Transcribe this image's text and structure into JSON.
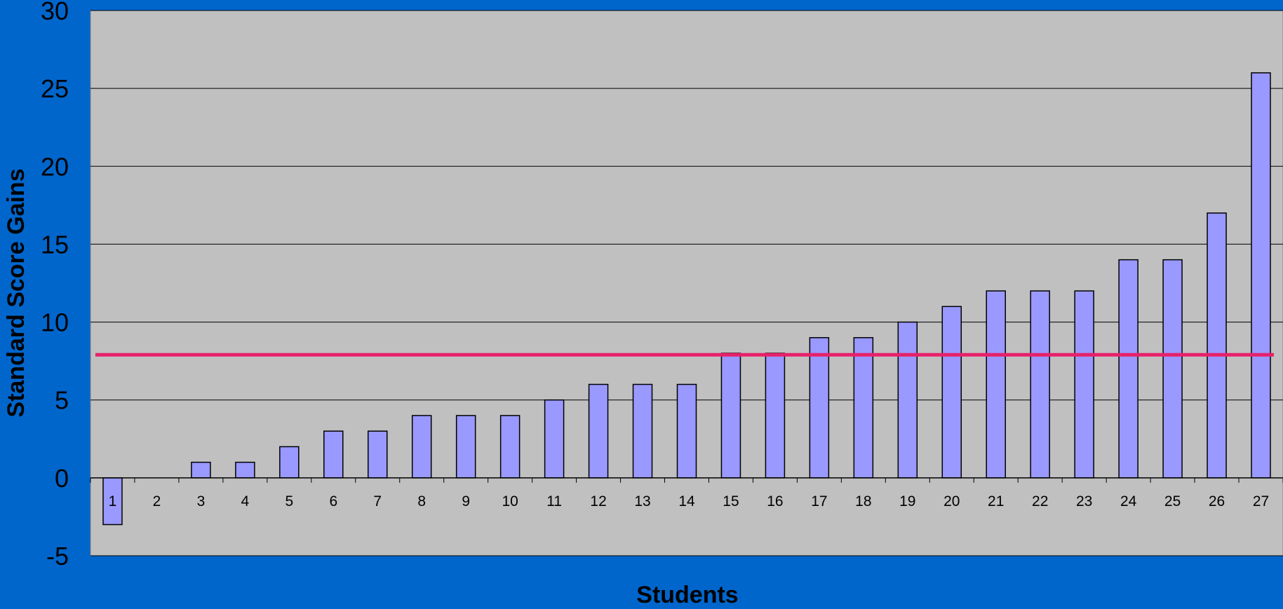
{
  "chart_data": {
    "type": "bar",
    "title": "",
    "xlabel": "Students",
    "ylabel": "Standard Score Gains",
    "ylim": [
      -5,
      30
    ],
    "yticks": [
      "30",
      "25",
      "20",
      "15",
      "10",
      "5",
      "0",
      "-5"
    ],
    "ytick_values": [
      30,
      25,
      20,
      15,
      10,
      5,
      0,
      -5
    ],
    "categories": [
      "1",
      "2",
      "3",
      "4",
      "5",
      "6",
      "7",
      "8",
      "9",
      "10",
      "11",
      "12",
      "13",
      "14",
      "15",
      "16",
      "17",
      "18",
      "19",
      "20",
      "21",
      "22",
      "23",
      "24",
      "25",
      "26",
      "27"
    ],
    "values": [
      -3,
      0,
      1,
      1,
      2,
      3,
      3,
      4,
      4,
      4,
      5,
      6,
      6,
      6,
      8,
      8,
      9,
      9,
      10,
      11,
      12,
      12,
      12,
      14,
      14,
      17,
      26
    ],
    "reference_line": {
      "y": 7.9,
      "color": "#E8206A"
    },
    "grid": true,
    "colors": {
      "background": "#0066CC",
      "plot_area": "#C0C0C0",
      "bar_fill": "#9999FF",
      "bar_stroke": "#000000",
      "gridline": "#000000"
    }
  }
}
